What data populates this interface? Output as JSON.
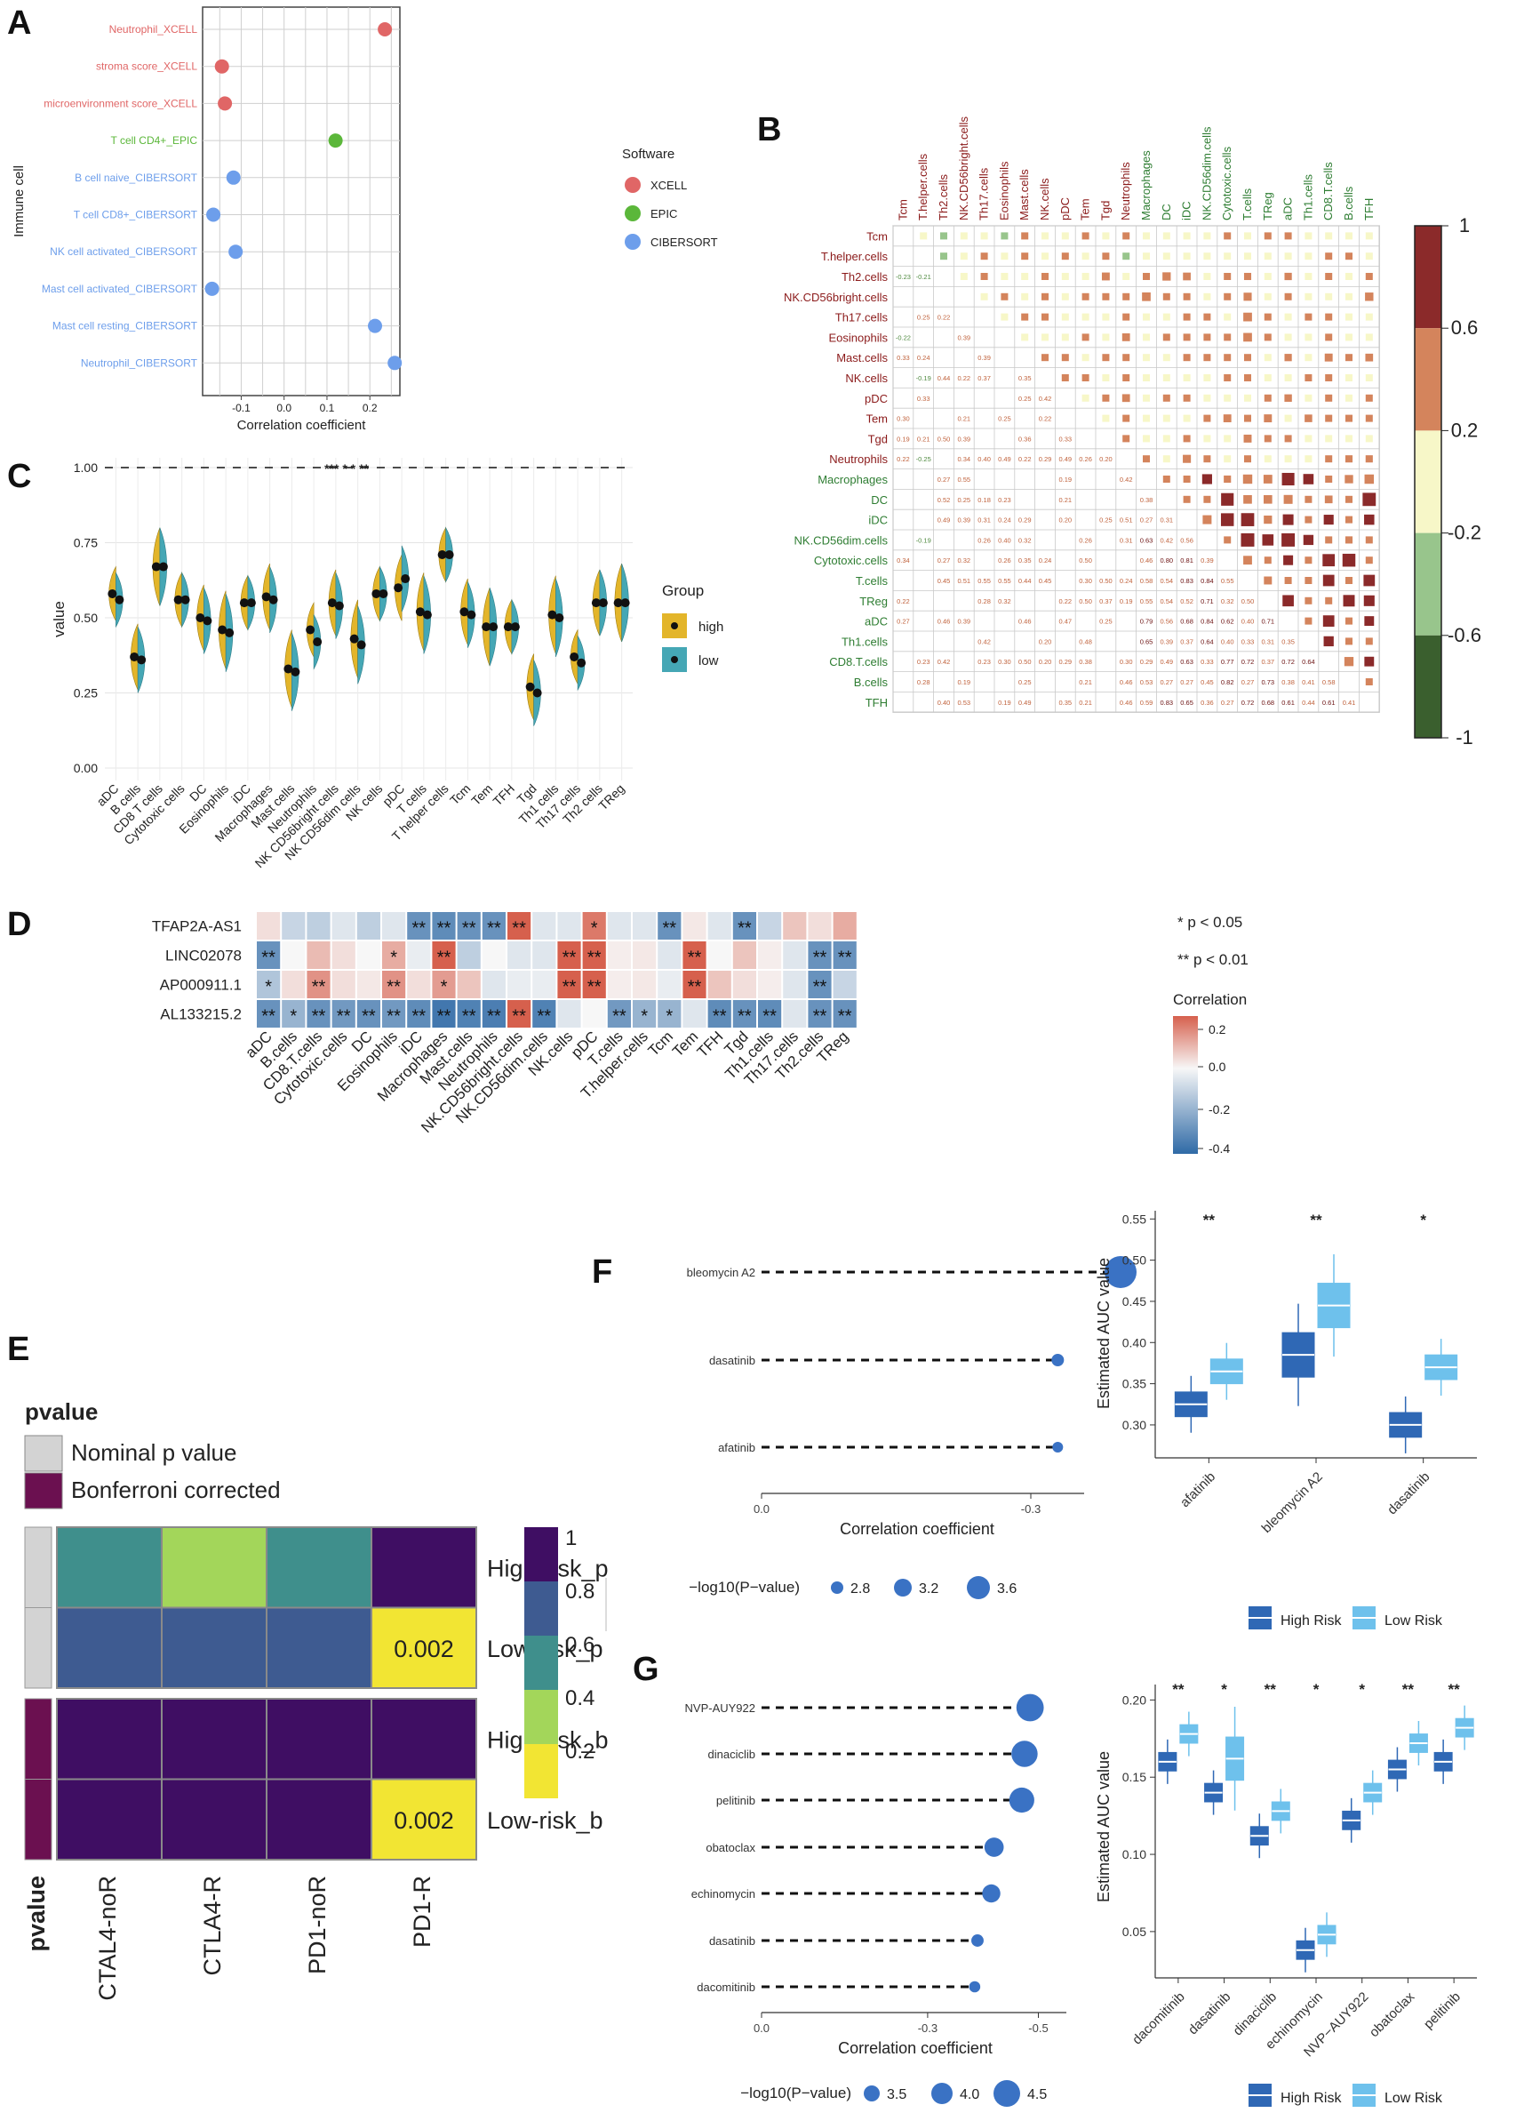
{
  "chart_data": [
    {
      "panel": "A",
      "type": "scatter",
      "ylabel": "Immune cell",
      "xlabel": "Correlation coefficient",
      "xticks": [
        "-0.1",
        "0.0",
        "0.1",
        "0.2"
      ],
      "xlim": [
        -0.19,
        0.27
      ],
      "legend_title": "Software",
      "legend": [
        {
          "name": "XCELL",
          "color": "#e06666"
        },
        {
          "name": "EPIC",
          "color": "#5bb73a"
        },
        {
          "name": "CIBERSORT",
          "color": "#6d9eeb"
        }
      ],
      "points": [
        {
          "label": "Neutrophil_XCELL",
          "x": 0.235,
          "software": "XCELL"
        },
        {
          "label": "stroma score_XCELL",
          "x": -0.145,
          "software": "XCELL"
        },
        {
          "label": "microenvironment score_XCELL",
          "x": -0.138,
          "software": "XCELL"
        },
        {
          "label": "T cell CD4+_EPIC",
          "x": 0.12,
          "software": "EPIC"
        },
        {
          "label": "B cell naive_CIBERSORT",
          "x": -0.118,
          "software": "CIBERSORT"
        },
        {
          "label": "T cell CD8+_CIBERSORT",
          "x": -0.165,
          "software": "CIBERSORT"
        },
        {
          "label": "NK cell activated_CIBERSORT",
          "x": -0.113,
          "software": "CIBERSORT"
        },
        {
          "label": "Mast cell activated_CIBERSORT",
          "x": -0.168,
          "software": "CIBERSORT"
        },
        {
          "label": "Mast cell resting_CIBERSORT",
          "x": 0.212,
          "software": "CIBERSORT"
        },
        {
          "label": "Neutrophil_CIBERSORT",
          "x": 0.258,
          "software": "CIBERSORT"
        }
      ]
    },
    {
      "panel": "B",
      "type": "heatmap",
      "cells": [
        "Tcm",
        "T.helper.cells",
        "Th2.cells",
        "NK.CD56bright.cells",
        "Th17.cells",
        "Eosinophils",
        "Mast.cells",
        "NK.cells",
        "pDC",
        "Tem",
        "Tgd",
        "Neutrophils",
        "Macrophages",
        "DC",
        "iDC",
        "NK.CD56dim.cells",
        "Cytotoxic.cells",
        "T.cells",
        "TReg",
        "aDC",
        "Th1.cells",
        "CD8.T.cells",
        "B.cells",
        "TFH"
      ],
      "colorbar_ticks": [
        "1",
        "0.6",
        "0.2",
        "-0.2",
        "-0.6",
        "-1"
      ],
      "colorbar_colors": [
        "#8b2a2a",
        "#d4845c",
        "#f7f7c8",
        "#98c58c",
        "#3a5f2e"
      ]
    },
    {
      "panel": "C",
      "type": "violin",
      "ylabel": "value",
      "yticks": [
        "0.00",
        "0.25",
        "0.50",
        "0.75",
        "1.00"
      ],
      "ylim": [
        0,
        1
      ],
      "legend_title": "Group",
      "legend": [
        {
          "name": "high",
          "color": "#e3b52a"
        },
        {
          "name": "low",
          "color": "#45a7b5"
        }
      ],
      "significance": "*** *  * **",
      "categories": [
        "aDC",
        "B cells",
        "CD8 T cells",
        "Cytotoxic cells",
        "DC",
        "Eosinophils",
        "iDC",
        "Macrophages",
        "Mast cells",
        "Neutrophils",
        "NK CD56bright cells",
        "NK CD56dim cells",
        "NK cells",
        "pDC",
        "T cells",
        "T helper cells",
        "Tcm",
        "Tem",
        "TFH",
        "Tgd",
        "Th1 cells",
        "Th17 cells",
        "Th2 cells",
        "TReg"
      ],
      "series": [
        {
          "name": "high",
          "values": [
            0.58,
            0.37,
            0.67,
            0.56,
            0.5,
            0.46,
            0.55,
            0.57,
            0.33,
            0.46,
            0.55,
            0.43,
            0.58,
            0.6,
            0.52,
            0.71,
            0.52,
            0.47,
            0.47,
            0.27,
            0.51,
            0.37,
            0.55,
            0.55
          ]
        },
        {
          "name": "low",
          "values": [
            0.56,
            0.36,
            0.67,
            0.56,
            0.49,
            0.45,
            0.55,
            0.56,
            0.32,
            0.42,
            0.54,
            0.41,
            0.58,
            0.63,
            0.51,
            0.71,
            0.51,
            0.47,
            0.47,
            0.25,
            0.5,
            0.35,
            0.55,
            0.55
          ]
        }
      ]
    },
    {
      "panel": "D",
      "type": "heatmap",
      "rows": [
        "TFAP2A-AS1",
        "LINC02078",
        "AP000911.1",
        "AL133215.2"
      ],
      "columns": [
        "aDC",
        "B.cells",
        "CD8.T.cells",
        "Cytotoxic.cells",
        "DC",
        "Eosinophils",
        "iDC",
        "Macrophages",
        "Mast.cells",
        "Neutrophils",
        "NK.CD56bright.cells",
        "NK.CD56dim.cells",
        "NK.cells",
        "pDC",
        "T.cells",
        "T.helper.cells",
        "Tcm",
        "Tem",
        "TFH",
        "Tgd",
        "Th1.cells",
        "Th17.cells",
        "Th2.cells",
        "TReg"
      ],
      "values": [
        [
          0.05,
          -0.1,
          -0.12,
          -0.05,
          -0.12,
          -0.05,
          -0.3,
          -0.32,
          -0.3,
          -0.3,
          0.32,
          -0.05,
          -0.05,
          0.25,
          -0.05,
          -0.05,
          -0.3,
          0.03,
          -0.05,
          -0.3,
          -0.1,
          0.1,
          0.05,
          0.15
        ],
        [
          -0.3,
          0.0,
          0.12,
          0.05,
          0.0,
          0.15,
          -0.03,
          0.3,
          -0.12,
          0.0,
          -0.05,
          -0.05,
          0.32,
          0.32,
          0.02,
          0.03,
          -0.05,
          0.32,
          0.0,
          0.1,
          0.02,
          -0.05,
          -0.3,
          -0.3
        ],
        [
          -0.15,
          0.05,
          0.2,
          0.05,
          0.03,
          0.2,
          0.05,
          0.18,
          0.1,
          -0.05,
          -0.03,
          -0.03,
          0.3,
          0.3,
          0.02,
          0.03,
          -0.03,
          0.3,
          0.1,
          0.05,
          0.02,
          -0.05,
          -0.3,
          -0.1
        ],
        [
          -0.3,
          -0.2,
          -0.3,
          -0.28,
          -0.3,
          -0.28,
          -0.32,
          -0.38,
          -0.35,
          -0.36,
          0.3,
          -0.35,
          -0.05,
          0.0,
          -0.28,
          -0.2,
          -0.2,
          -0.05,
          -0.32,
          -0.3,
          -0.32,
          -0.05,
          -0.3,
          -0.3
        ]
      ],
      "stars": [
        [
          "",
          "",
          "",
          "",
          "",
          "",
          "**",
          "**",
          "**",
          "**",
          "**",
          "",
          "",
          "*",
          "",
          "",
          "**",
          "",
          "",
          "**",
          "",
          "",
          "",
          ""
        ],
        [
          "**",
          "",
          "",
          "",
          "",
          "*",
          "",
          "**",
          "",
          "",
          "",
          "",
          "**",
          "**",
          "",
          "",
          "",
          "**",
          "",
          "",
          "",
          "",
          "**",
          "**"
        ],
        [
          "*",
          "",
          "**",
          "",
          "",
          "**",
          "",
          "*",
          "",
          "",
          "",
          "",
          "**",
          "**",
          "",
          "",
          "",
          "**",
          "",
          "",
          "",
          "",
          "**",
          ""
        ],
        [
          "**",
          "*",
          "**",
          "**",
          "**",
          "**",
          "**",
          "**",
          "**",
          "**",
          "**",
          "**",
          "",
          "",
          "**",
          "*",
          "*",
          "",
          "**",
          "**",
          "**",
          "",
          "**",
          "**"
        ]
      ],
      "legend_p1": "* p < 0.05",
      "legend_p2": "** p < 0.01",
      "legend_title": "Correlation",
      "colorbar_ticks": [
        "0.2",
        "0.0",
        "-0.2",
        "-0.4"
      ]
    },
    {
      "panel": "E",
      "type": "heatmap",
      "legend_title": "pvalue",
      "legend": [
        {
          "name": "Nominal p value",
          "color": "#d3d3d3"
        },
        {
          "name": "Bonferroni corrected",
          "color": "#6b1050"
        }
      ],
      "rows": [
        "High-risk_p",
        "Low-risk_p",
        "High-risk_b",
        "Low-risk_b"
      ],
      "columns": [
        "CTAL4-noR",
        "CTLA4-R",
        "PD1-noR",
        "PD1-R"
      ],
      "values": [
        [
          0.45,
          0.25,
          0.45,
          1.0
        ],
        [
          0.7,
          0.7,
          0.7,
          0.002
        ],
        [
          1.0,
          1.0,
          1.0,
          1.0
        ],
        [
          1.0,
          1.0,
          1.0,
          0.002
        ]
      ],
      "cell_labels": [
        [
          "",
          "",
          "",
          ""
        ],
        [
          "",
          "",
          "",
          "0.002"
        ],
        [
          "",
          "",
          "",
          ""
        ],
        [
          "",
          "",
          "",
          "0.002"
        ]
      ],
      "annotation_label": "pvalue",
      "colorbar_ticks": [
        "1",
        "0.8",
        "0.6",
        "0.4",
        "0.2"
      ]
    },
    {
      "panel": "F",
      "type": "scatter",
      "subtype": "lollipop",
      "xlabel": "Correlation coefficient",
      "xticks": [
        "0.0",
        "-0.3"
      ],
      "size_legend_title": "−log10(P−value)",
      "size_legend": [
        "2.8",
        "3.2",
        "3.6"
      ],
      "points": [
        {
          "label": "bleomycin A2",
          "x": -0.4,
          "neglogp": 3.7
        },
        {
          "label": "dasatinib",
          "x": -0.33,
          "neglogp": 2.6
        },
        {
          "label": "afatinib",
          "x": -0.33,
          "neglogp": 2.5
        }
      ]
    },
    {
      "panel": "F",
      "type": "box",
      "ylabel": "Estimated AUC value",
      "ylim": [
        0.26,
        0.56
      ],
      "yticks": [
        "0.30",
        "0.35",
        "0.40",
        "0.45",
        "0.50",
        "0.55"
      ],
      "categories": [
        "afatinib",
        "bleomycin A2",
        "dasatinib"
      ],
      "significance": [
        "**",
        "**",
        "*"
      ],
      "legend": [
        {
          "name": "High Risk",
          "color": "#2f68b5"
        },
        {
          "name": "Low Risk",
          "color": "#6ec1ec"
        }
      ],
      "series": [
        {
          "name": "High Risk",
          "values": [
            0.325,
            0.385,
            0.3
          ]
        },
        {
          "name": "Low Risk",
          "values": [
            0.365,
            0.445,
            0.37
          ]
        }
      ]
    },
    {
      "panel": "G",
      "type": "scatter",
      "subtype": "lollipop",
      "xlabel": "Correlation coefficient",
      "xticks": [
        "0.0",
        "-0.3",
        "-0.5"
      ],
      "size_legend_title": "−log10(P−value)",
      "size_legend": [
        "3.5",
        "4.0",
        "4.5"
      ],
      "points": [
        {
          "label": "NVP-AUY922",
          "x": -0.485,
          "neglogp": 4.6
        },
        {
          "label": "dinaciclib",
          "x": -0.475,
          "neglogp": 4.5
        },
        {
          "label": "pelitinib",
          "x": -0.47,
          "neglogp": 4.4
        },
        {
          "label": "obatoclax",
          "x": -0.42,
          "neglogp": 3.9
        },
        {
          "label": "echinomycin",
          "x": -0.415,
          "neglogp": 3.8
        },
        {
          "label": "dasatinib",
          "x": -0.39,
          "neglogp": 3.3
        },
        {
          "label": "dacomitinib",
          "x": -0.385,
          "neglogp": 3.2
        }
      ]
    },
    {
      "panel": "G",
      "type": "box",
      "ylabel": "Estimated AUC value",
      "ylim": [
        0.02,
        0.21
      ],
      "yticks": [
        "0.05",
        "0.10",
        "0.15",
        "0.20"
      ],
      "categories": [
        "dacomitinib",
        "dasatinib",
        "dinaciclib",
        "echinomycin",
        "NVP−AUY922",
        "obatoclax",
        "pelitinib"
      ],
      "significance": [
        "**",
        "*",
        "**",
        "*",
        "*",
        "**",
        "**"
      ],
      "legend": [
        {
          "name": "High Risk",
          "color": "#2f68b5"
        },
        {
          "name": "Low Risk",
          "color": "#6ec1ec"
        }
      ],
      "series": [
        {
          "name": "High Risk",
          "values": [
            0.16,
            0.14,
            0.112,
            0.038,
            0.122,
            0.155,
            0.16
          ]
        },
        {
          "name": "Low Risk",
          "values": [
            0.178,
            0.162,
            0.128,
            0.048,
            0.14,
            0.172,
            0.182
          ]
        }
      ]
    }
  ]
}
